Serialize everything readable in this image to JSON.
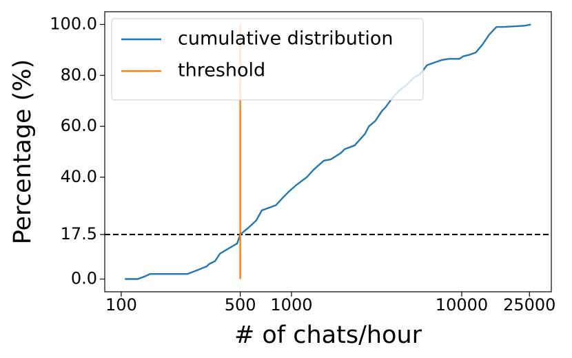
{
  "chart_data": {
    "type": "line",
    "xlabel": "# of chats/hour",
    "ylabel": "Percentage (%)",
    "xscale": "log",
    "xlim": [
      80,
      33600
    ],
    "ylim": [
      -5,
      105
    ],
    "xticks": [
      100,
      500,
      1000,
      10000,
      25000
    ],
    "yticks": [
      {
        "value": 0,
        "label": "0.0"
      },
      17.5,
      {
        "value": 40,
        "label": "40.0"
      },
      {
        "value": 60,
        "label": "60.0"
      },
      {
        "value": 80,
        "label": "80.0"
      },
      {
        "value": 100,
        "label": "100.0"
      }
    ],
    "hline": 17.5,
    "hline_color": "#000000",
    "legend": "upper left",
    "series": [
      {
        "name": "cumulative distribution",
        "color": "#1f77b4",
        "x": [
          105,
          125,
          137,
          148,
          245,
          280,
          318,
          330,
          355,
          380,
          480,
          500,
          555,
          620,
          670,
          810,
          890,
          970,
          1070,
          1230,
          1350,
          1550,
          1700,
          1950,
          2050,
          2350,
          2700,
          2850,
          3100,
          3400,
          3570,
          3900,
          4300,
          4700,
          5200,
          5700,
          6250,
          6900,
          7600,
          8400,
          9700,
          10200,
          11000,
          12100,
          13200,
          14500,
          16000,
          17600,
          23400,
          25500
        ],
        "values": [
          0,
          0,
          1,
          2,
          2,
          3.5,
          5,
          6,
          7,
          10,
          14,
          17.5,
          20,
          23,
          27,
          29,
          32,
          34.5,
          37,
          40,
          43,
          46.5,
          47,
          49.5,
          51,
          52.5,
          57,
          60,
          62,
          66,
          67.5,
          71,
          74,
          76,
          79,
          80.5,
          84,
          85,
          86,
          86.5,
          86.5,
          87.5,
          88,
          89,
          92,
          96,
          99,
          99,
          99.5,
          100
        ]
      },
      {
        "name": "threshold",
        "color": "#ff7f0e",
        "x": [
          500,
          500
        ],
        "values": [
          0,
          100
        ]
      }
    ]
  }
}
